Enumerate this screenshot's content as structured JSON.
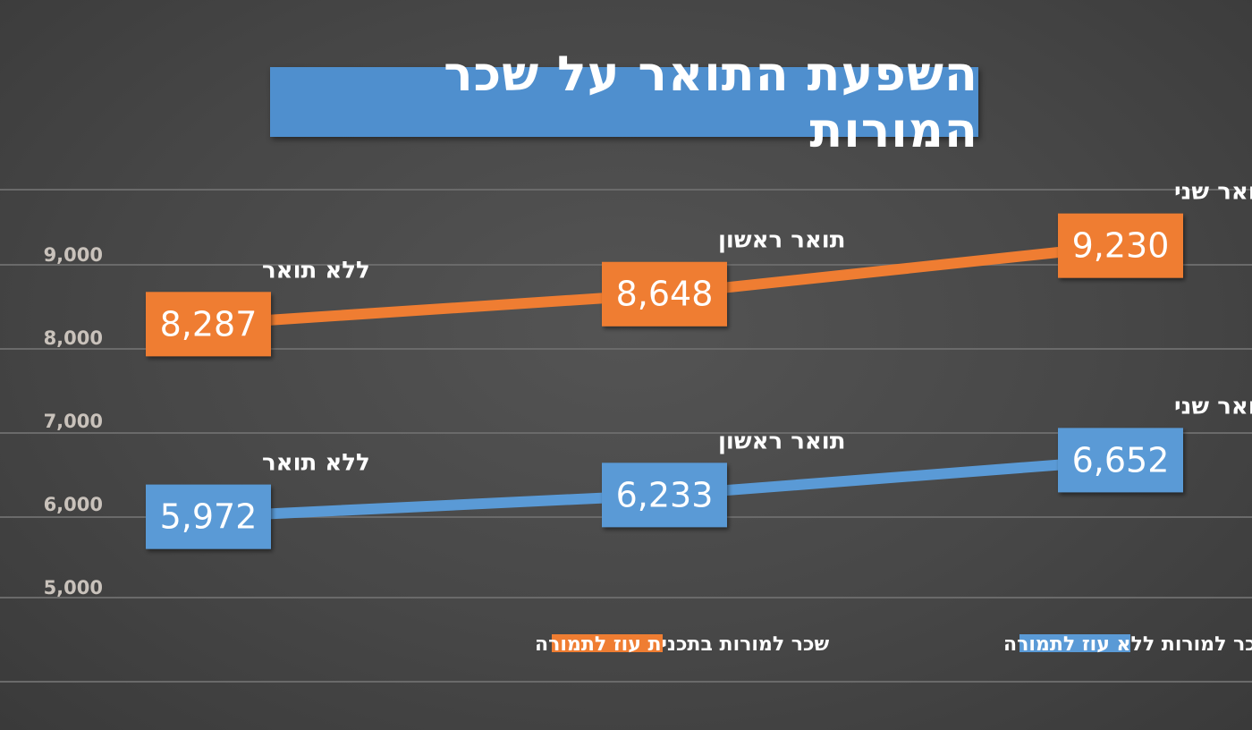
{
  "chart_data": {
    "type": "line",
    "title": "השפעת התואר על שכר המורות",
    "ylim": [
      5000,
      9500
    ],
    "yticks": [
      "5,000",
      "6,000",
      "7,000",
      "8,000",
      "9,000"
    ],
    "ytick_values": [
      5000,
      6000,
      7000,
      8000,
      9000
    ],
    "categories": [
      "ללא תואר",
      "תואר ראשון",
      "תואר שני"
    ],
    "series": [
      {
        "name": "שכר למורות בתכנית עוז לתמורה",
        "color": "#ef7d32",
        "values": [
          8287,
          8648,
          9230
        ],
        "labels": [
          "8,287",
          "8,648",
          "9,230"
        ]
      },
      {
        "name": "שכר למורות ללא עוז לתמורה",
        "color": "#5a9ad6",
        "values": [
          5972,
          6233,
          6652
        ],
        "labels": [
          "5,972",
          "6,233",
          "6,652"
        ]
      }
    ],
    "grid": true,
    "legend": "bottom"
  }
}
